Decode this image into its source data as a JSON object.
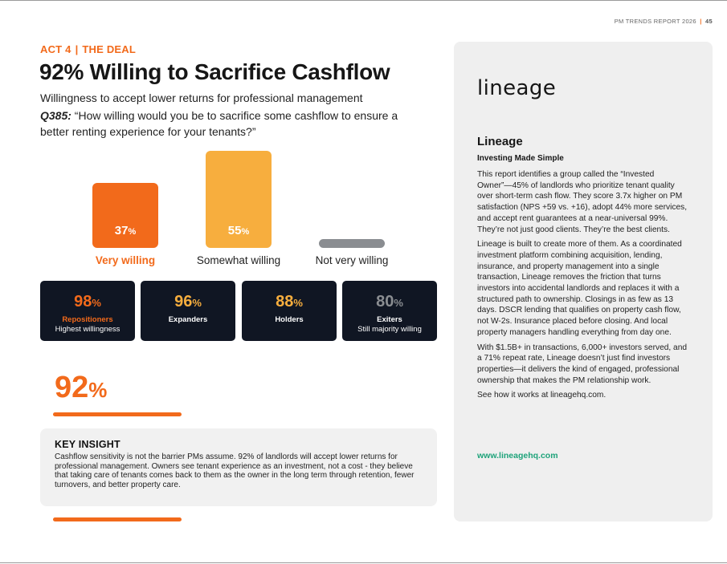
{
  "header": {
    "report": "PM TRENDS REPORT 2026",
    "separator": "|",
    "page": "45"
  },
  "section": {
    "act": "ACT 4",
    "separator": "|",
    "name": "THE DEAL"
  },
  "title": "92% Willing to Sacrifice Cashflow",
  "subtitle": "Willingness to accept lower returns for professional management",
  "question": {
    "id": "Q385:",
    "text": " “How willing would you be to sacrifice some cashflow to ensure a better renting experience for your tenants?”"
  },
  "chart_data": {
    "type": "bar",
    "categories": [
      "Very willing",
      "Somewhat willing",
      "Not very willing"
    ],
    "values": [
      37,
      55,
      5
    ],
    "unit": "%",
    "colors": [
      "#f26a1b",
      "#f7ae3e",
      "#8a8d91"
    ],
    "highlight_index": 0
  },
  "segments": [
    {
      "value": "98",
      "unit": "%",
      "name": "Repositioners",
      "sub": "Highest willingness",
      "value_color": "#f26a1b",
      "name_color": "orange"
    },
    {
      "value": "96",
      "unit": "%",
      "name": "Expanders",
      "sub": "",
      "value_color": "#f7ae3e",
      "name_color": "white"
    },
    {
      "value": "88",
      "unit": "%",
      "name": "Holders",
      "sub": "",
      "value_color": "#f7ae3e",
      "name_color": "white"
    },
    {
      "value": "80",
      "unit": "%",
      "name": "Exiters",
      "sub": "Still majority willing",
      "value_color": "#8a8d91",
      "name_color": "white"
    }
  ],
  "big_stat": {
    "value": "92",
    "unit": "%"
  },
  "insight": {
    "title": "KEY INSIGHT",
    "body": "Cashflow sensitivity is not the barrier PMs assume. 92% of landlords will accept lower returns for professional management. Owners see tenant experience as an investment, not a cost - they believe that taking care of tenants comes back to them as the owner in the long term through retention, fewer turnovers, and better property care."
  },
  "sidebar": {
    "logo": "lineage",
    "title": "Lineage",
    "subtitle": "Investing Made Simple",
    "paragraphs": [
      "This report identifies a group called the “Invested Owner”—45% of landlords who prioritize tenant quality over short-term cash flow. They score 3.7x higher on PM satisfaction (NPS +59 vs. +16), adopt 44% more services, and accept rent guarantees at a near-universal 99%. They’re not just good clients. They’re the best clients.",
      "Lineage is built to create more of them. As a coordinated investment platform combining acquisition, lending, insurance, and property management into a single transaction, Lineage removes the friction that turns investors into accidental landlords and replaces it with a structured path to ownership. Closings in as few as 13 days. DSCR lending that qualifies on property cash flow, not W-2s. Insurance placed before closing. And local property managers handling everything from day one.",
      "With $1.5B+ in transactions, 6,000+ investors served, and a 71% repeat rate, Lineage doesn’t just find investors properties—it delivers the kind of engaged, professional ownership that makes the PM relationship work.",
      "See how it works at lineagehq.com."
    ],
    "link": "www.lineagehq.com"
  }
}
